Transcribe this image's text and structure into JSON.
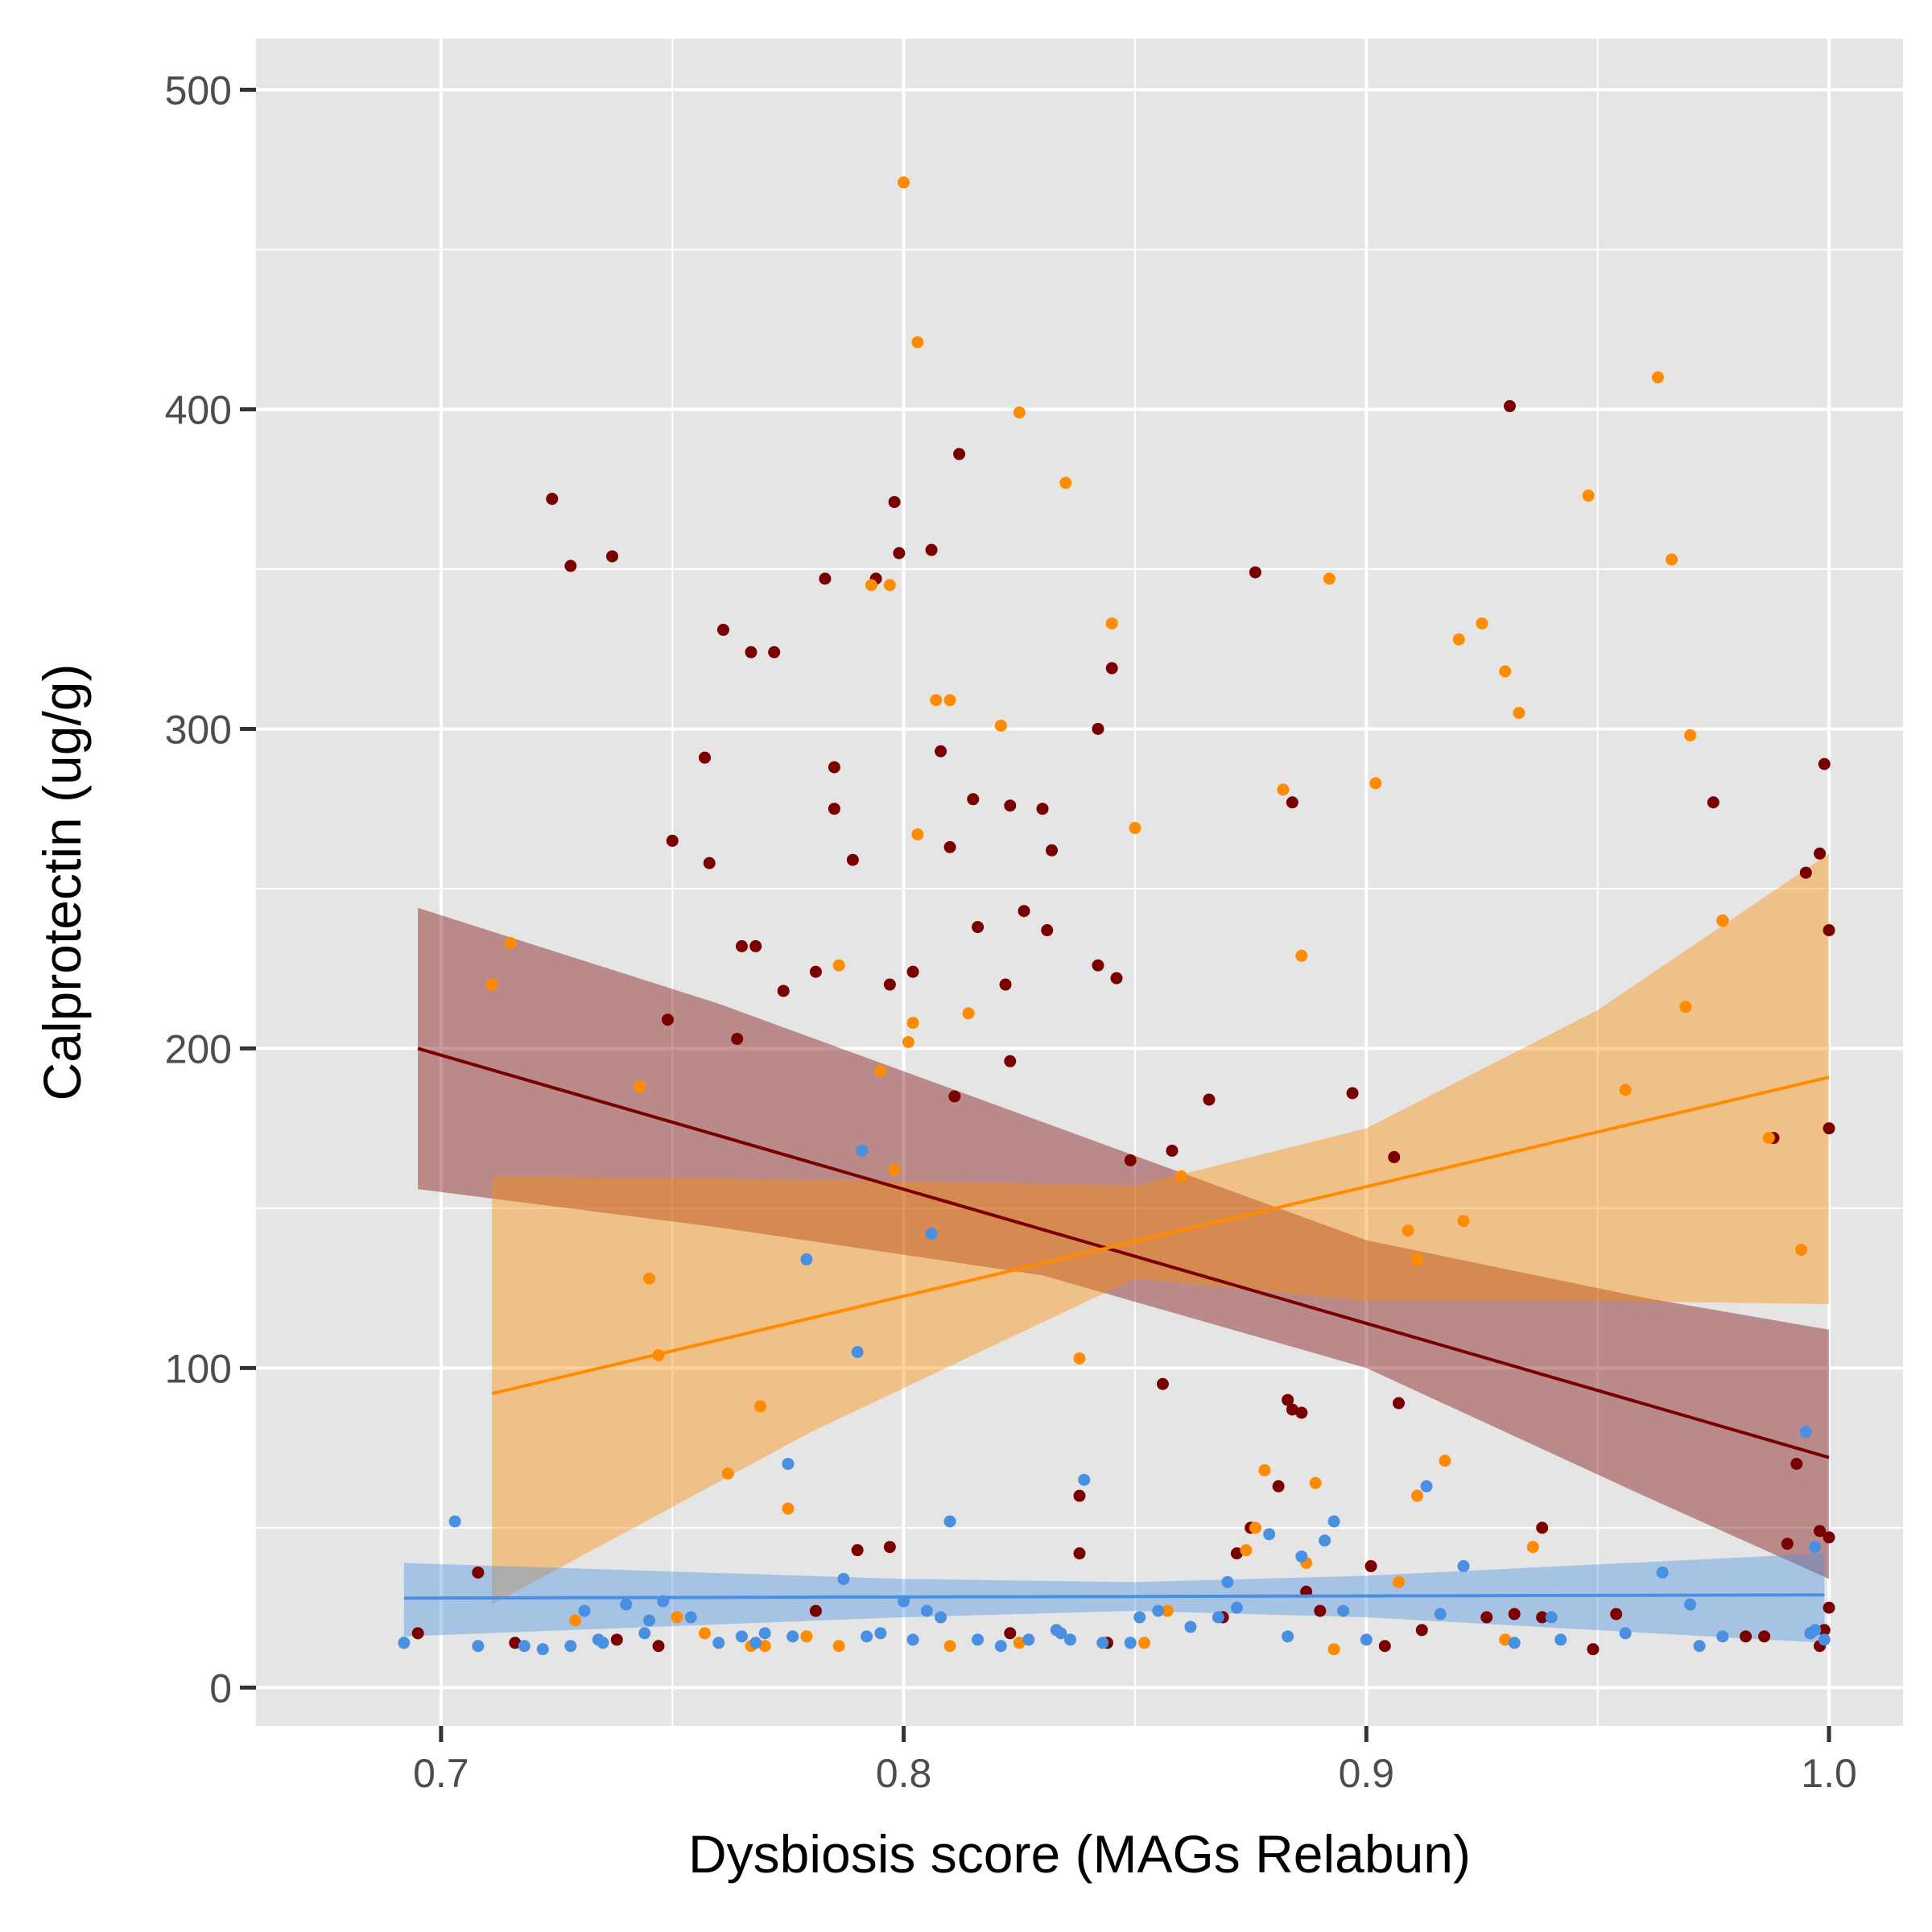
{
  "chart_data": {
    "type": "scatter",
    "xlabel": "Dysbiosis score (MAGs Relabun)",
    "ylabel": "Calprotectin (ug/g)",
    "xlim": [
      0.66,
      1.016
    ],
    "ylim": [
      -12,
      516
    ],
    "x_ticks": [
      0.7,
      0.8,
      0.9,
      1.0
    ],
    "x_tick_labels": [
      "0.7",
      "0.8",
      "0.9",
      "1.0"
    ],
    "y_ticks": [
      0,
      100,
      200,
      300,
      400,
      500
    ],
    "y_tick_labels": [
      "0",
      "100",
      "200",
      "300",
      "400",
      "500"
    ],
    "grid": true,
    "legend": "none",
    "panel_color": "#e5e5e5",
    "series": [
      {
        "color": "#7a0000",
        "points": [
          [
            0.695,
            17
          ],
          [
            0.708,
            36
          ],
          [
            0.716,
            14
          ],
          [
            0.724,
            372
          ],
          [
            0.728,
            351
          ],
          [
            0.737,
            354
          ],
          [
            0.738,
            15
          ],
          [
            0.747,
            13
          ],
          [
            0.749,
            209
          ],
          [
            0.75,
            265
          ],
          [
            0.757,
            291
          ],
          [
            0.758,
            258
          ],
          [
            0.761,
            331
          ],
          [
            0.764,
            203
          ],
          [
            0.765,
            232
          ],
          [
            0.767,
            324
          ],
          [
            0.768,
            232
          ],
          [
            0.772,
            324
          ],
          [
            0.774,
            218
          ],
          [
            0.781,
            224
          ],
          [
            0.783,
            347
          ],
          [
            0.785,
            288
          ],
          [
            0.785,
            275
          ],
          [
            0.789,
            259
          ],
          [
            0.79,
            43
          ],
          [
            0.794,
            347
          ],
          [
            0.797,
            220
          ],
          [
            0.798,
            371
          ],
          [
            0.799,
            355
          ],
          [
            0.802,
            224
          ],
          [
            0.806,
            356
          ],
          [
            0.808,
            293
          ],
          [
            0.81,
            263
          ],
          [
            0.811,
            185
          ],
          [
            0.812,
            386
          ],
          [
            0.815,
            278
          ],
          [
            0.816,
            238
          ],
          [
            0.822,
            220
          ],
          [
            0.823,
            196
          ],
          [
            0.823,
            276
          ],
          [
            0.826,
            243
          ],
          [
            0.83,
            275
          ],
          [
            0.832,
            262
          ],
          [
            0.831,
            237
          ],
          [
            0.842,
            300
          ],
          [
            0.842,
            226
          ],
          [
            0.845,
            319
          ],
          [
            0.846,
            222
          ],
          [
            0.838,
            60
          ],
          [
            0.838,
            42
          ],
          [
            0.849,
            165
          ],
          [
            0.856,
            95
          ],
          [
            0.858,
            168
          ],
          [
            0.866,
            184
          ],
          [
            0.872,
            42
          ],
          [
            0.875,
            50
          ],
          [
            0.876,
            349
          ],
          [
            0.883,
            90
          ],
          [
            0.884,
            277
          ],
          [
            0.884,
            87
          ],
          [
            0.886,
            86
          ],
          [
            0.887,
            30
          ],
          [
            0.881,
            63
          ],
          [
            0.897,
            186
          ],
          [
            0.901,
            38
          ],
          [
            0.906,
            166
          ],
          [
            0.907,
            89
          ],
          [
            0.904,
            13
          ],
          [
            0.912,
            18
          ],
          [
            0.926,
            22
          ],
          [
            0.931,
            401
          ],
          [
            0.938,
            50
          ],
          [
            0.938,
            22
          ],
          [
            0.949,
            12
          ],
          [
            0.975,
            277
          ],
          [
            0.977,
            240
          ],
          [
            0.988,
            172
          ],
          [
            0.993,
            70
          ],
          [
            0.995,
            255
          ],
          [
            0.998,
            49
          ],
          [
            0.998,
            261
          ],
          [
            0.999,
            289
          ],
          [
            1.0,
            237
          ],
          [
            1.0,
            175
          ],
          [
            1.0,
            47
          ],
          [
            1.0,
            25
          ],
          [
            0.999,
            18
          ],
          [
            0.998,
            13
          ],
          [
            0.996,
            17
          ],
          [
            0.991,
            45
          ],
          [
            0.986,
            16
          ],
          [
            0.982,
            16
          ],
          [
            0.954,
            23
          ],
          [
            0.932,
            23
          ],
          [
            0.89,
            24
          ],
          [
            0.869,
            22
          ],
          [
            0.844,
            14
          ],
          [
            0.823,
            17
          ],
          [
            0.797,
            44
          ],
          [
            0.781,
            24
          ]
        ]
      },
      {
        "color": "#ff8c00",
        "points": [
          [
            0.711,
            220
          ],
          [
            0.715,
            233
          ],
          [
            0.729,
            21
          ],
          [
            0.743,
            188
          ],
          [
            0.745,
            128
          ],
          [
            0.747,
            104
          ],
          [
            0.751,
            22
          ],
          [
            0.762,
            67
          ],
          [
            0.769,
            88
          ],
          [
            0.775,
            56
          ],
          [
            0.786,
            226
          ],
          [
            0.793,
            345
          ],
          [
            0.795,
            193
          ],
          [
            0.797,
            345
          ],
          [
            0.798,
            162
          ],
          [
            0.8,
            471
          ],
          [
            0.801,
            202
          ],
          [
            0.802,
            208
          ],
          [
            0.803,
            421
          ],
          [
            0.803,
            267
          ],
          [
            0.807,
            309
          ],
          [
            0.81,
            309
          ],
          [
            0.814,
            211
          ],
          [
            0.821,
            301
          ],
          [
            0.825,
            399
          ],
          [
            0.835,
            377
          ],
          [
            0.838,
            103
          ],
          [
            0.845,
            333
          ],
          [
            0.85,
            269
          ],
          [
            0.857,
            24
          ],
          [
            0.86,
            160
          ],
          [
            0.874,
            43
          ],
          [
            0.878,
            68
          ],
          [
            0.882,
            281
          ],
          [
            0.886,
            229
          ],
          [
            0.889,
            64
          ],
          [
            0.892,
            347
          ],
          [
            0.902,
            283
          ],
          [
            0.909,
            143
          ],
          [
            0.911,
            134
          ],
          [
            0.911,
            60
          ],
          [
            0.917,
            71
          ],
          [
            0.921,
            146
          ],
          [
            0.92,
            328
          ],
          [
            0.925,
            333
          ],
          [
            0.93,
            318
          ],
          [
            0.933,
            305
          ],
          [
            0.936,
            44
          ],
          [
            0.948,
            373
          ],
          [
            0.956,
            187
          ],
          [
            0.963,
            410
          ],
          [
            0.966,
            353
          ],
          [
            0.969,
            213
          ],
          [
            0.97,
            298
          ],
          [
            0.977,
            240
          ],
          [
            0.994,
            137
          ],
          [
            0.987,
            172
          ],
          [
            0.907,
            33
          ],
          [
            0.887,
            39
          ],
          [
            0.876,
            50
          ],
          [
            0.852,
            14
          ],
          [
            0.825,
            14
          ],
          [
            0.81,
            13
          ],
          [
            0.786,
            13
          ],
          [
            0.767,
            13
          ],
          [
            0.757,
            17
          ],
          [
            0.77,
            13
          ],
          [
            0.779,
            16
          ],
          [
            0.893,
            12
          ],
          [
            0.93,
            15
          ]
        ]
      },
      {
        "color": "#4a90e2",
        "points": [
          [
            0.692,
            14
          ],
          [
            0.703,
            52
          ],
          [
            0.708,
            13
          ],
          [
            0.718,
            13
          ],
          [
            0.722,
            12
          ],
          [
            0.728,
            13
          ],
          [
            0.731,
            24
          ],
          [
            0.734,
            15
          ],
          [
            0.735,
            14
          ],
          [
            0.74,
            26
          ],
          [
            0.744,
            17
          ],
          [
            0.745,
            21
          ],
          [
            0.748,
            27
          ],
          [
            0.754,
            22
          ],
          [
            0.76,
            14
          ],
          [
            0.765,
            16
          ],
          [
            0.768,
            14
          ],
          [
            0.77,
            17
          ],
          [
            0.775,
            70
          ],
          [
            0.776,
            16
          ],
          [
            0.779,
            134
          ],
          [
            0.787,
            34
          ],
          [
            0.792,
            16
          ],
          [
            0.795,
            17
          ],
          [
            0.79,
            105
          ],
          [
            0.791,
            168
          ],
          [
            0.8,
            27
          ],
          [
            0.802,
            15
          ],
          [
            0.805,
            24
          ],
          [
            0.806,
            142
          ],
          [
            0.808,
            22
          ],
          [
            0.81,
            52
          ],
          [
            0.816,
            15
          ],
          [
            0.821,
            13
          ],
          [
            0.827,
            15
          ],
          [
            0.834,
            17
          ],
          [
            0.836,
            15
          ],
          [
            0.839,
            65
          ],
          [
            0.843,
            14
          ],
          [
            0.851,
            22
          ],
          [
            0.855,
            24
          ],
          [
            0.862,
            19
          ],
          [
            0.868,
            22
          ],
          [
            0.872,
            25
          ],
          [
            0.879,
            48
          ],
          [
            0.883,
            16
          ],
          [
            0.886,
            41
          ],
          [
            0.891,
            46
          ],
          [
            0.893,
            52
          ],
          [
            0.895,
            24
          ],
          [
            0.9,
            15
          ],
          [
            0.913,
            63
          ],
          [
            0.916,
            23
          ],
          [
            0.932,
            14
          ],
          [
            0.94,
            22
          ],
          [
            0.942,
            15
          ],
          [
            0.956,
            17
          ],
          [
            0.97,
            26
          ],
          [
            0.972,
            13
          ],
          [
            0.977,
            16
          ],
          [
            0.995,
            80
          ],
          [
            0.996,
            17
          ],
          [
            0.997,
            18
          ],
          [
            0.997,
            44
          ],
          [
            0.999,
            15
          ],
          [
            0.964,
            36
          ],
          [
            0.921,
            38
          ],
          [
            0.87,
            33
          ],
          [
            0.849,
            14
          ],
          [
            0.833,
            18
          ]
        ]
      }
    ],
    "fits": [
      {
        "color": "#7a0000",
        "x": [
          0.695,
          1.0
        ],
        "y": [
          200,
          72
        ],
        "band_lower": [
          [
            0.695,
            156
          ],
          [
            0.76,
            144
          ],
          [
            0.83,
            129
          ],
          [
            0.9,
            100
          ],
          [
            0.96,
            60
          ],
          [
            1.0,
            34
          ]
        ],
        "band_upper": [
          [
            0.695,
            244
          ],
          [
            0.76,
            214
          ],
          [
            0.83,
            177
          ],
          [
            0.9,
            140
          ],
          [
            0.96,
            122
          ],
          [
            1.0,
            112
          ]
        ]
      },
      {
        "color": "#ff8c00",
        "x": [
          0.711,
          1.0
        ],
        "y": [
          92,
          191
        ],
        "band_lower": [
          [
            0.711,
            26
          ],
          [
            0.78,
            80
          ],
          [
            0.85,
            128
          ],
          [
            0.9,
            121
          ],
          [
            0.95,
            121
          ],
          [
            1.0,
            120
          ]
        ],
        "band_upper": [
          [
            0.711,
            160
          ],
          [
            0.78,
            159
          ],
          [
            0.85,
            157
          ],
          [
            0.9,
            175
          ],
          [
            0.95,
            212
          ],
          [
            1.0,
            261
          ]
        ]
      },
      {
        "color": "#4a90e2",
        "x": [
          0.692,
          0.999
        ],
        "y": [
          28,
          29
        ],
        "band_lower": [
          [
            0.692,
            16
          ],
          [
            0.8,
            22
          ],
          [
            0.85,
            24
          ],
          [
            0.9,
            22
          ],
          [
            0.999,
            14
          ]
        ],
        "band_upper": [
          [
            0.692,
            39
          ],
          [
            0.8,
            34
          ],
          [
            0.85,
            33
          ],
          [
            0.9,
            35
          ],
          [
            0.999,
            42
          ]
        ]
      }
    ]
  }
}
